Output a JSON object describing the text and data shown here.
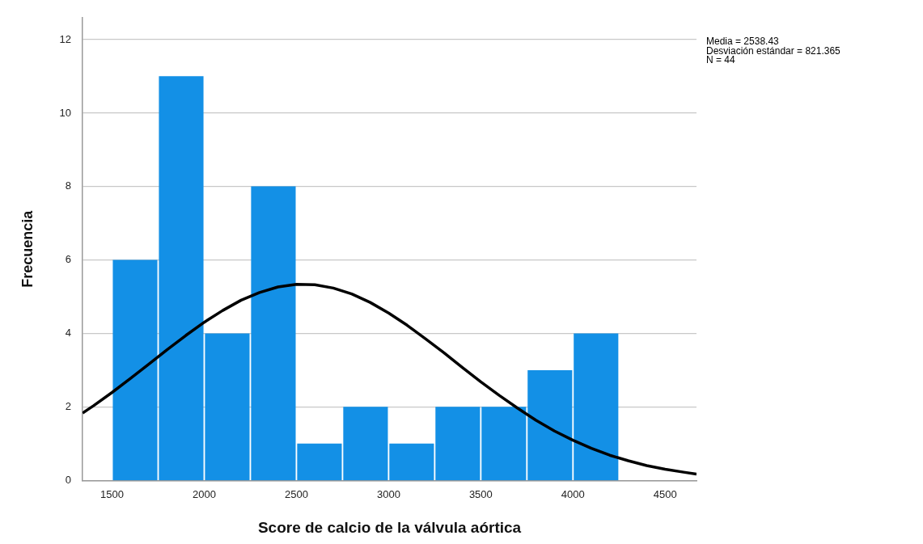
{
  "chart_data": {
    "type": "histogram",
    "xlabel": "Score de calcio de la válvula aórtica",
    "ylabel": "Frecuencia",
    "bins": [
      1500,
      1750,
      2000,
      2250,
      2500,
      2750,
      3000,
      3250,
      3500,
      3750,
      4000,
      4250
    ],
    "values": [
      6,
      11,
      4,
      8,
      1,
      2,
      1,
      2,
      2,
      3,
      4
    ],
    "color": "#1390e6",
    "series": [
      {
        "type": "line",
        "color": "#000000",
        "x": [
          1340,
          1400,
          1500,
          1600,
          1700,
          1800,
          1900,
          2000,
          2100,
          2200,
          2300,
          2400,
          2500,
          2600,
          2700,
          2800,
          2900,
          3000,
          3100,
          3200,
          3300,
          3400,
          3500,
          3600,
          3700,
          3800,
          3900,
          4000,
          4100,
          4200,
          4300,
          4400,
          4500,
          4600,
          4670
        ],
        "values": [
          1.84,
          2.04,
          2.4,
          2.78,
          3.17,
          3.57,
          3.95,
          4.31,
          4.63,
          4.91,
          5.12,
          5.27,
          5.34,
          5.33,
          5.24,
          5.08,
          4.85,
          4.56,
          4.23,
          3.86,
          3.48,
          3.08,
          2.69,
          2.32,
          1.97,
          1.64,
          1.35,
          1.1,
          0.88,
          0.69,
          0.54,
          0.41,
          0.31,
          0.23,
          0.18
        ]
      }
    ],
    "xlim": [
      1340,
      4670
    ],
    "xticks": [
      1500,
      2000,
      2500,
      3000,
      3500,
      4000,
      4500
    ],
    "ylim": [
      0,
      12.6
    ],
    "yticks": [
      0,
      2,
      4,
      6,
      8,
      10,
      12
    ],
    "grid": "y",
    "legend": false,
    "marker": "none",
    "line_style": "solid",
    "annotations": [
      "Media = 2538.43",
      "Desviación estándar = 821.365",
      "N = 44"
    ]
  }
}
